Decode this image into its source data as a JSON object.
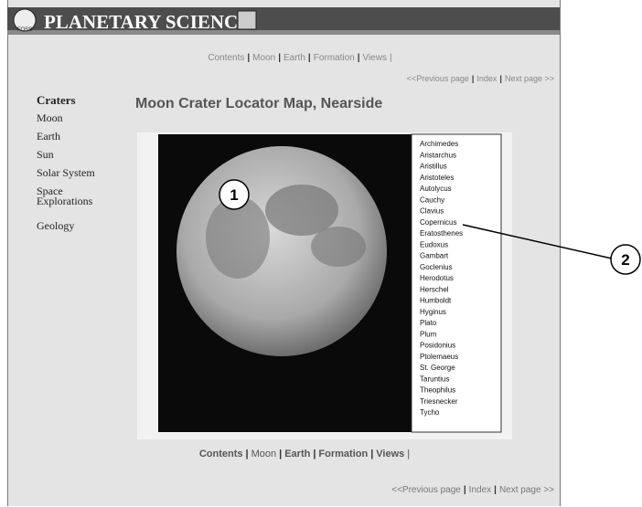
{
  "header": {
    "logo": "FOSS",
    "title": "PLANETARY SCIENCE"
  },
  "nav": {
    "separator": "|",
    "items": [
      "Contents",
      "Moon",
      "Earth",
      "Formation",
      "Views"
    ]
  },
  "pager": {
    "separator": "|",
    "items": [
      "<<Previous page",
      "Index",
      "Next page >>"
    ]
  },
  "sidebar": [
    "Craters",
    "Moon",
    "Earth",
    "Sun",
    "Solar System",
    "Space Explorations",
    "Geology"
  ],
  "page_title": "Moon Crater Locator Map, Nearside",
  "craters": [
    "Archimedes",
    "Aristarchus",
    "Aristillus",
    "Aristoteles",
    "Autolycus",
    "Cauchy",
    "Clavius",
    "Copernicus",
    "Eratosthenes",
    "Eudoxus",
    "Gambart",
    "Goclenius",
    "Herodotus",
    "Herschel",
    "Humboldt",
    "Hyginus",
    "Plato",
    "Plum",
    "Posidonius",
    "Ptolemaeus",
    "St. George",
    "Taruntius",
    "Theophilus",
    "Triesnecker",
    "Tycho"
  ],
  "callouts": [
    "1",
    "2"
  ]
}
